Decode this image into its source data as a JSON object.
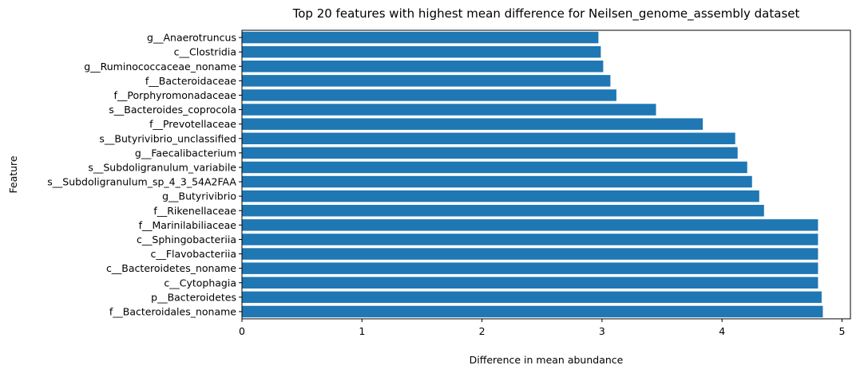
{
  "chart_data": {
    "type": "bar",
    "orientation": "horizontal",
    "title": "Top 20 features with highest mean difference for Neilsen_genome_assembly dataset",
    "xlabel": "Difference in mean abundance",
    "ylabel": "Feature",
    "xlim": [
      0,
      5.07
    ],
    "xticks": [
      0,
      1,
      2,
      3,
      4,
      5
    ],
    "grid": false,
    "bar_color": "#1f77b4",
    "categories": [
      "f__Bacteroidales_noname",
      "p__Bacteroidetes",
      "c__Cytophagia",
      "c__Bacteroidetes_noname",
      "c__Flavobacteriia",
      "c__Sphingobacteriia",
      "f__Marinilabiliaceae",
      "f__Rikenellaceae",
      "g__Butyrivibrio",
      "s__Subdoligranulum_sp_4_3_54A2FAA",
      "s__Subdoligranulum_variabile",
      "g__Faecalibacterium",
      "s__Butyrivibrio_unclassified",
      "f__Prevotellaceae",
      "s__Bacteroides_coprocola",
      "f__Porphyromonadaceae",
      "f__Bacteroidaceae",
      "g__Ruminococcaceae_noname",
      "c__Clostridia",
      "g__Anaerotruncus"
    ],
    "values": [
      4.84,
      4.83,
      4.8,
      4.8,
      4.8,
      4.8,
      4.8,
      4.35,
      4.31,
      4.25,
      4.21,
      4.13,
      4.11,
      3.84,
      3.45,
      3.12,
      3.07,
      3.01,
      2.99,
      2.97
    ]
  }
}
